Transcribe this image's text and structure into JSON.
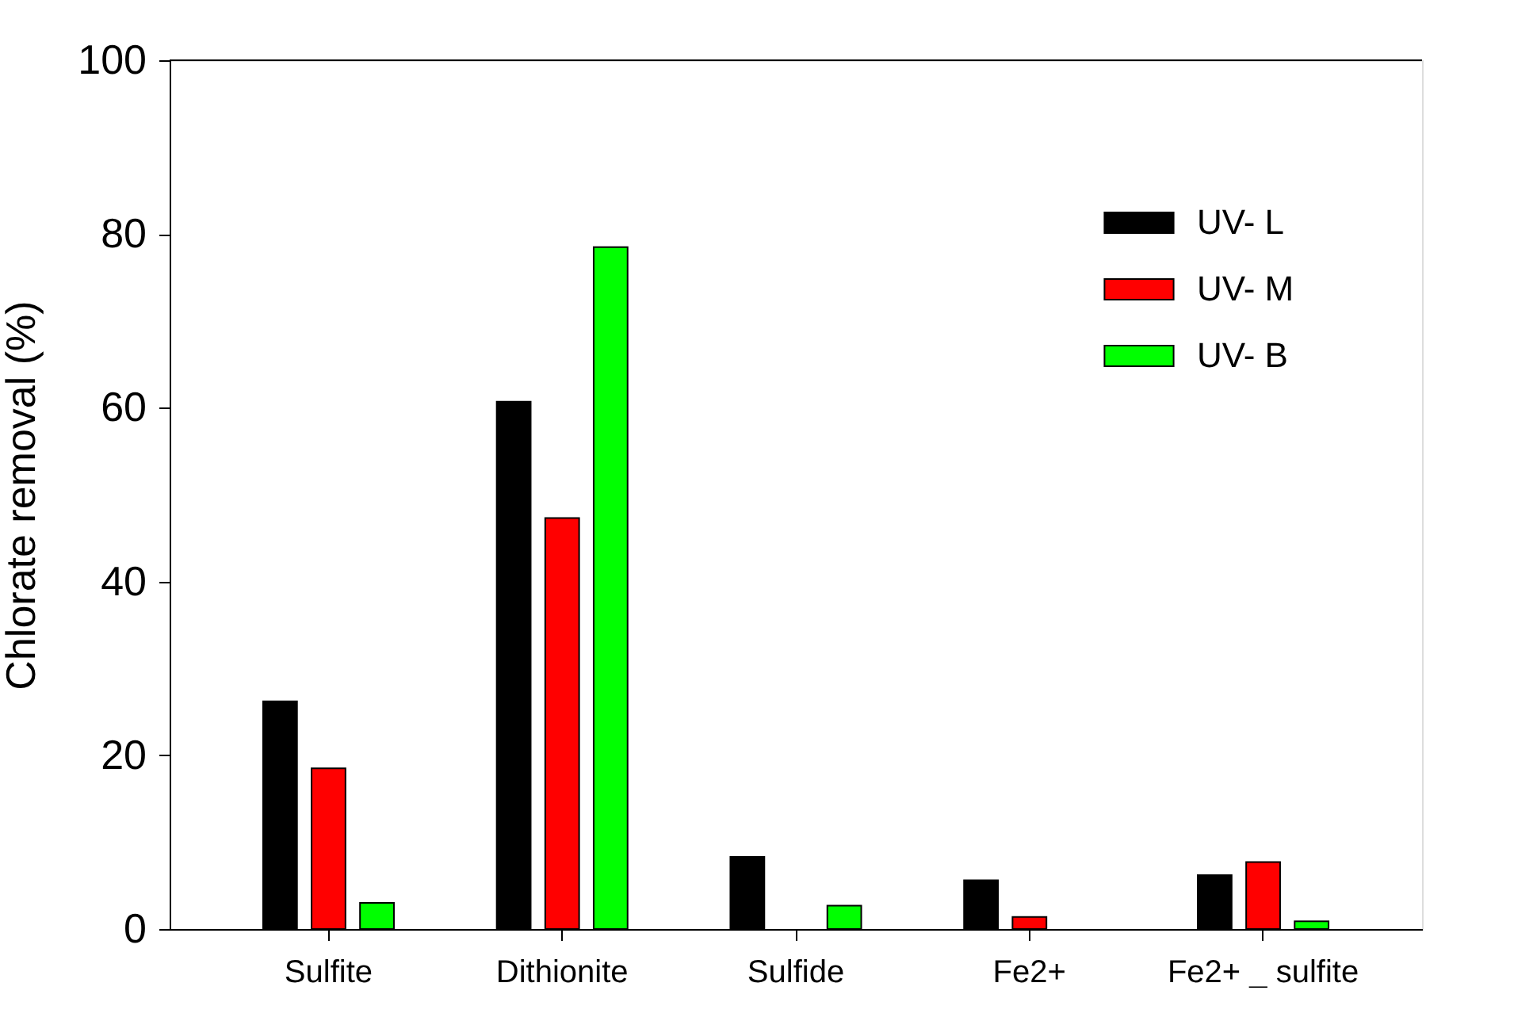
{
  "chart_data": {
    "type": "bar",
    "ylabel": "Chlorate removal (%)",
    "categories": [
      "Sulfite",
      "Dithionite",
      "Sulfide",
      "Fe2+",
      "Fe2+ _ sulfite"
    ],
    "series": [
      {
        "name": "UV- L",
        "color": "#000000",
        "values": [
          26.2,
          60.7,
          8.3,
          5.6,
          6.2
        ]
      },
      {
        "name": "UV- M",
        "color": "#ff0000",
        "values": [
          18.5,
          47.3,
          null,
          1.4,
          7.7
        ]
      },
      {
        "name": "UV- B",
        "color": "#00ff00",
        "values": [
          3.0,
          78.5,
          2.7,
          null,
          0.9
        ]
      }
    ],
    "ylim": [
      0,
      100
    ],
    "yticks": [
      0,
      20,
      40,
      60,
      80,
      100
    ],
    "grid": false,
    "legend": "top right"
  }
}
